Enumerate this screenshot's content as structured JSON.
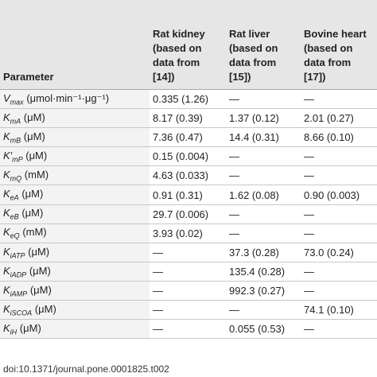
{
  "table": {
    "header": [
      "Parameter",
      "Rat kidney (based on data from [14])",
      "Rat liver (based on data from [15])",
      "Bovine heart (based on data from [17])"
    ],
    "rows": [
      [
        {
          "symbol": "V",
          "sub": "max",
          "unit": "(μmol·min⁻¹·μg⁻¹)"
        },
        "0.335 (1.26)",
        "—",
        "—"
      ],
      [
        {
          "symbol": "K",
          "sub": "mA",
          "unit": "(μM)"
        },
        "8.17 (0.39)",
        "1.37 (0.12)",
        "2.01 (0.27)"
      ],
      [
        {
          "symbol": "K",
          "sub": "mB",
          "unit": "(μM)"
        },
        "7.36 (0.47)",
        "14.4 (0.31)",
        "8.66 (0.10)"
      ],
      [
        {
          "symbol": "K′",
          "sub": "mP",
          "unit": "(μM)"
        },
        "0.15 (0.004)",
        "—",
        "—"
      ],
      [
        {
          "symbol": "K",
          "sub": "mQ",
          "unit": "(mM)"
        },
        "4.63 (0.033)",
        "—",
        "—"
      ],
      [
        {
          "symbol": "K",
          "sub": "eA",
          "unit": "(μM)"
        },
        "0.91 (0.31)",
        "1.62 (0.08)",
        "0.90 (0.003)"
      ],
      [
        {
          "symbol": "K",
          "sub": "eB",
          "unit": "(μM)"
        },
        "29.7 (0.006)",
        "—",
        "—"
      ],
      [
        {
          "symbol": "K",
          "sub": "eQ",
          "unit": "(mM)"
        },
        "3.93 (0.02)",
        "—",
        "—"
      ],
      [
        {
          "symbol": "K",
          "sub": "iATP",
          "unit": "(μM)"
        },
        "—",
        "37.3 (0.28)",
        "73.0 (0.24)"
      ],
      [
        {
          "symbol": "K",
          "sub": "iADP",
          "unit": "(μM)"
        },
        "—",
        "135.4 (0.28)",
        "—"
      ],
      [
        {
          "symbol": "K",
          "sub": "iAMP",
          "unit": "(μM)"
        },
        "—",
        "992.3 (0.27)",
        "—"
      ],
      [
        {
          "symbol": "K",
          "sub": "iSCOA",
          "unit": "(μM)"
        },
        "—",
        "—",
        "74.1 (0.10)"
      ],
      [
        {
          "symbol": "K",
          "sub": "iH",
          "unit": "(μM)"
        },
        "—",
        "0.055 (0.53)",
        "—"
      ]
    ]
  },
  "footer": "doi:10.1371/journal.pone.0001825.t002"
}
